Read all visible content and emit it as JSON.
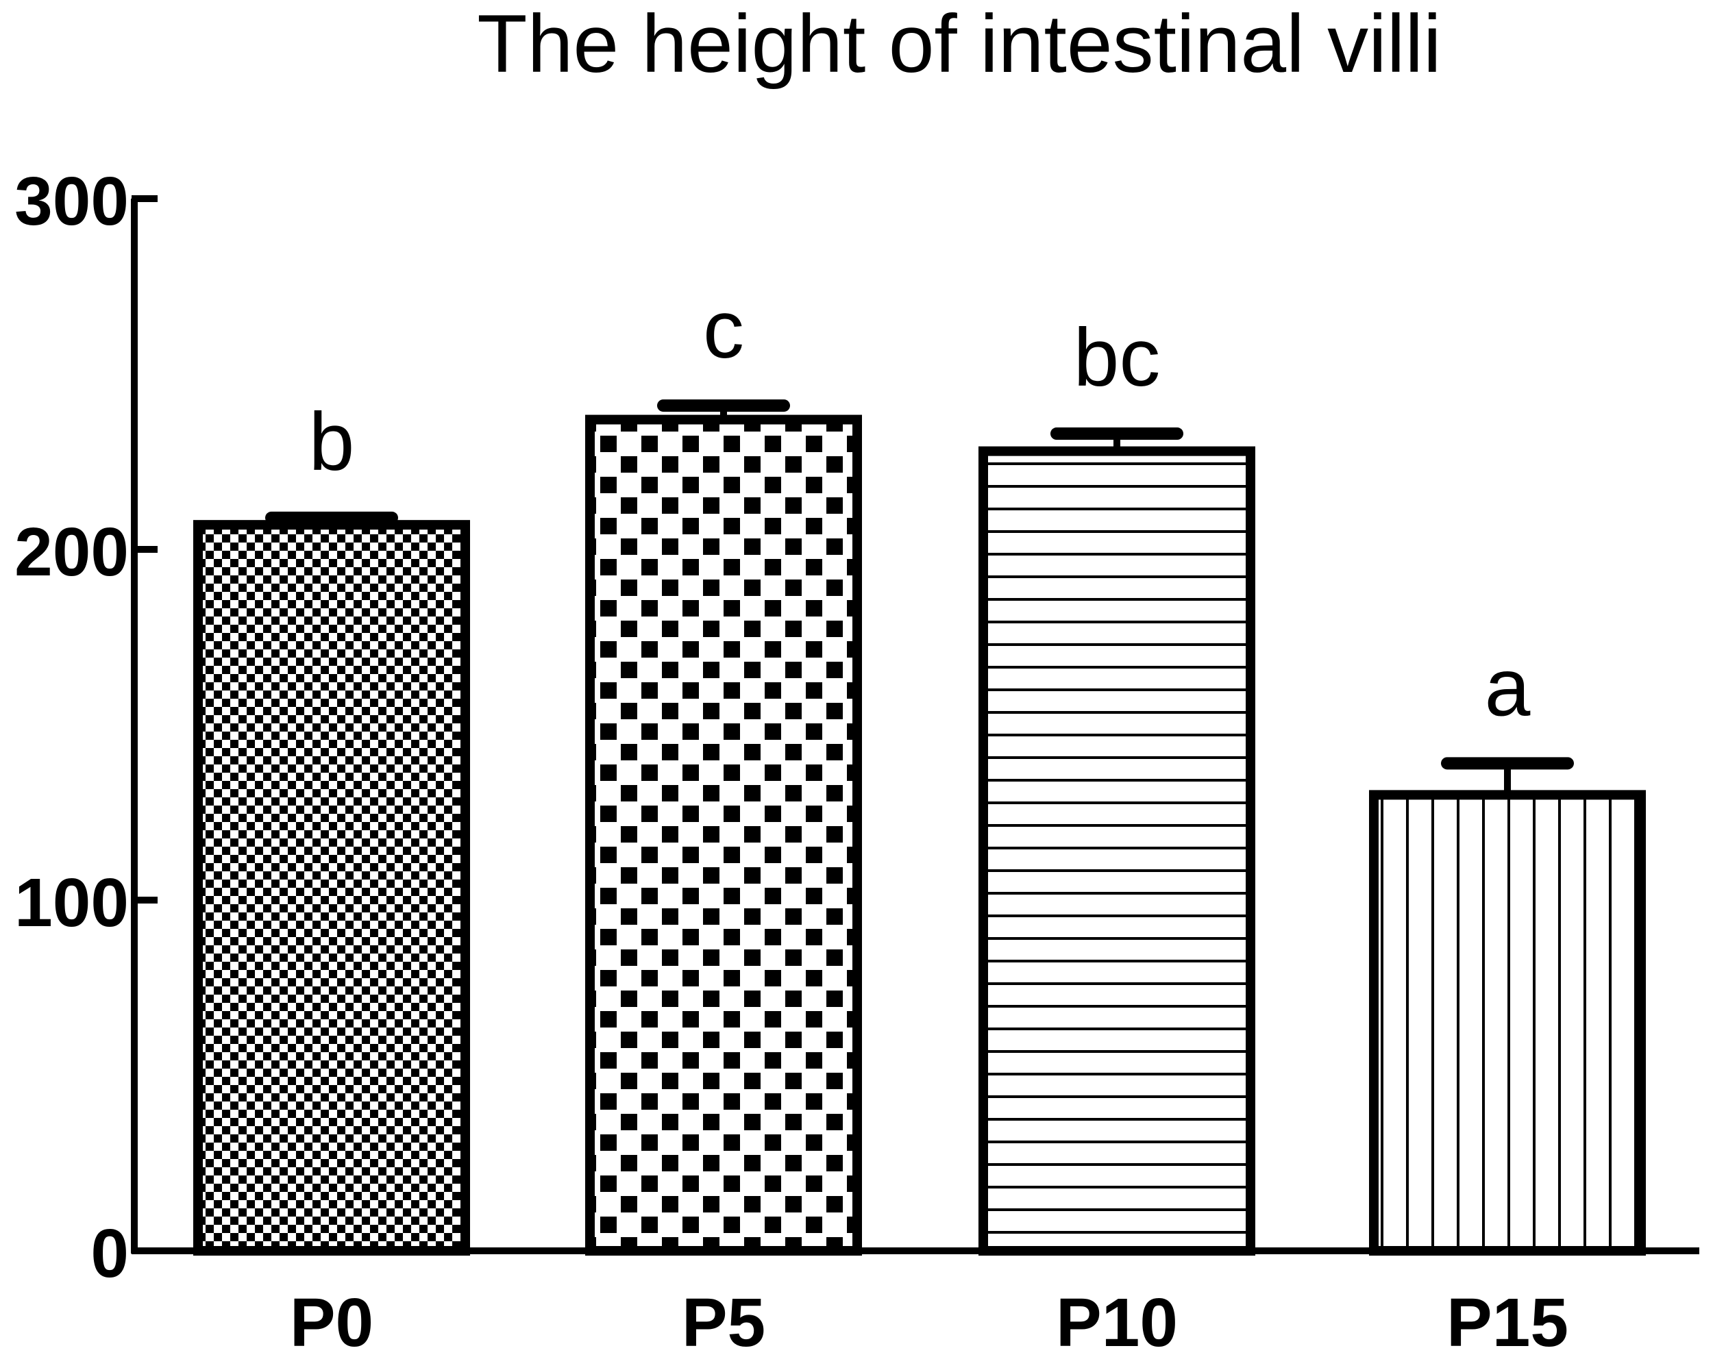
{
  "chart_data": {
    "type": "bar",
    "title": "The height of intestinal villi",
    "xlabel": "",
    "ylabel": "",
    "categories": [
      "P0",
      "P5",
      "P10",
      "P15"
    ],
    "values": [
      207,
      237,
      228,
      130
    ],
    "errors": [
      2,
      4,
      5,
      9
    ],
    "significance": [
      "b",
      "c",
      "bc",
      "a"
    ],
    "patterns": [
      "fine-checker",
      "coarse-checker",
      "horizontal-stripes",
      "vertical-stripes"
    ],
    "ylim": [
      0,
      300
    ],
    "yticks": [
      0,
      100,
      200,
      300
    ],
    "ytick_labels": [
      "0",
      "100",
      "200",
      "300"
    ],
    "grid": false,
    "legend": "none",
    "colors": {
      "ink": "#000000",
      "background": "#ffffff"
    }
  }
}
